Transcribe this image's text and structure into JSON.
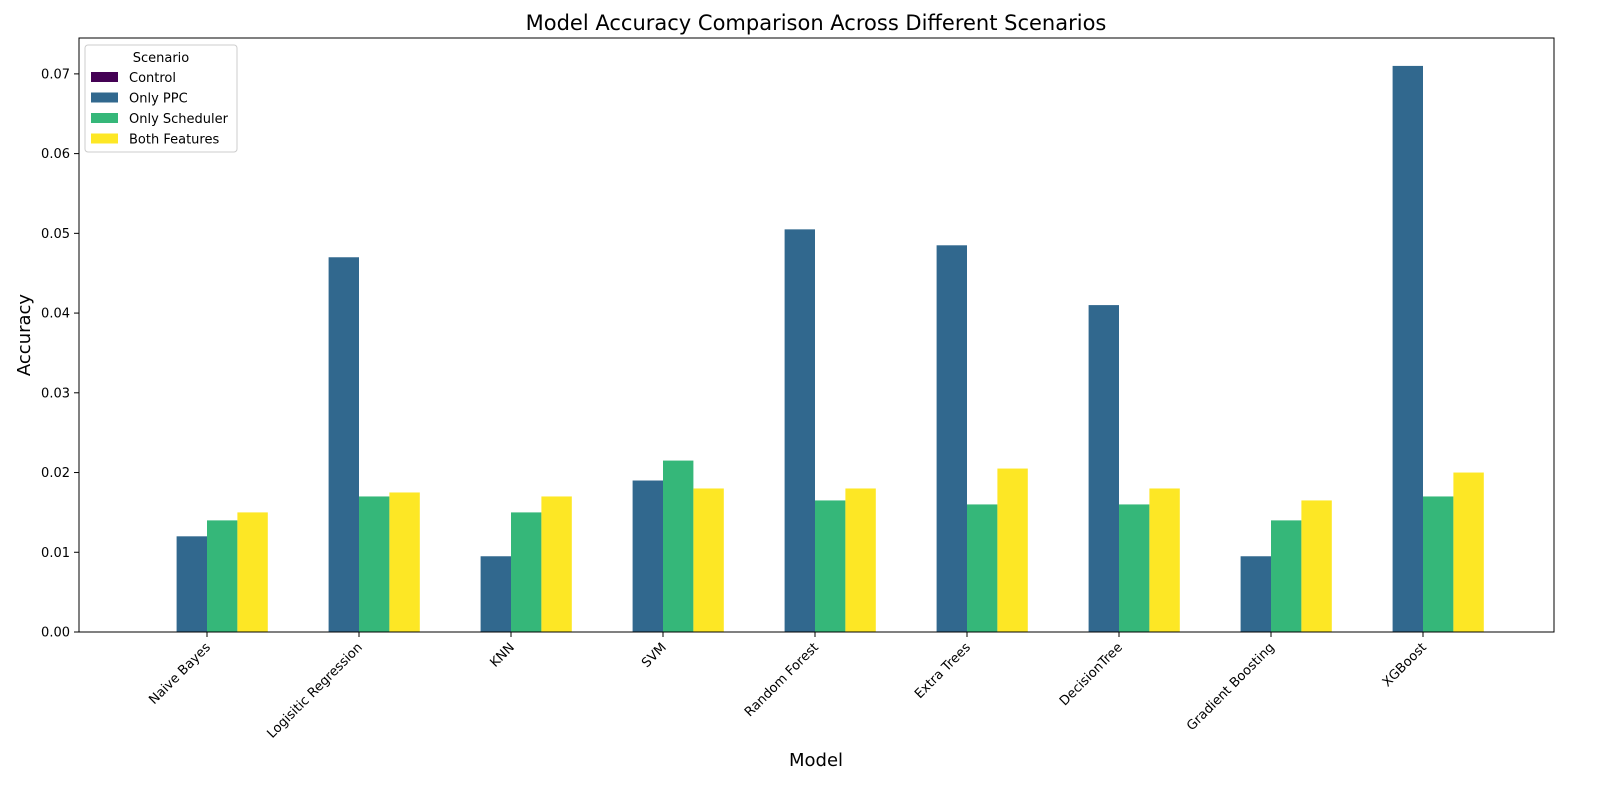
{
  "chart_data": {
    "type": "bar",
    "title": "Model Accuracy Comparison Across Different Scenarios",
    "xlabel": "Model",
    "ylabel": "Accuracy",
    "ylim": [
      0,
      0.0745
    ],
    "yticks": [
      "0.00",
      "0.01",
      "0.02",
      "0.03",
      "0.04",
      "0.05",
      "0.06",
      "0.07"
    ],
    "grid": false,
    "legend": {
      "title": "Scenario",
      "placement": "top-left"
    },
    "categories": [
      "Naive Bayes",
      "Logisitic Regression",
      "KNN",
      "SVM",
      "Random Forest",
      "Extra Trees",
      "DecisionTree",
      "Gradient Boosting",
      "XGBoost"
    ],
    "series": [
      {
        "name": "Control",
        "color": "#440154",
        "values": [
          0,
          0,
          0,
          0,
          0,
          0,
          0,
          0,
          0
        ]
      },
      {
        "name": "Only PPC",
        "color": "#31688e",
        "values": [
          0.012,
          0.047,
          0.0095,
          0.019,
          0.0505,
          0.0485,
          0.041,
          0.0095,
          0.071
        ]
      },
      {
        "name": "Only Scheduler",
        "color": "#35b779",
        "values": [
          0.014,
          0.017,
          0.015,
          0.0215,
          0.0165,
          0.016,
          0.016,
          0.014,
          0.017
        ]
      },
      {
        "name": "Both Features",
        "color": "#fde725",
        "values": [
          0.015,
          0.0175,
          0.017,
          0.018,
          0.018,
          0.0205,
          0.018,
          0.0165,
          0.02
        ]
      }
    ]
  }
}
